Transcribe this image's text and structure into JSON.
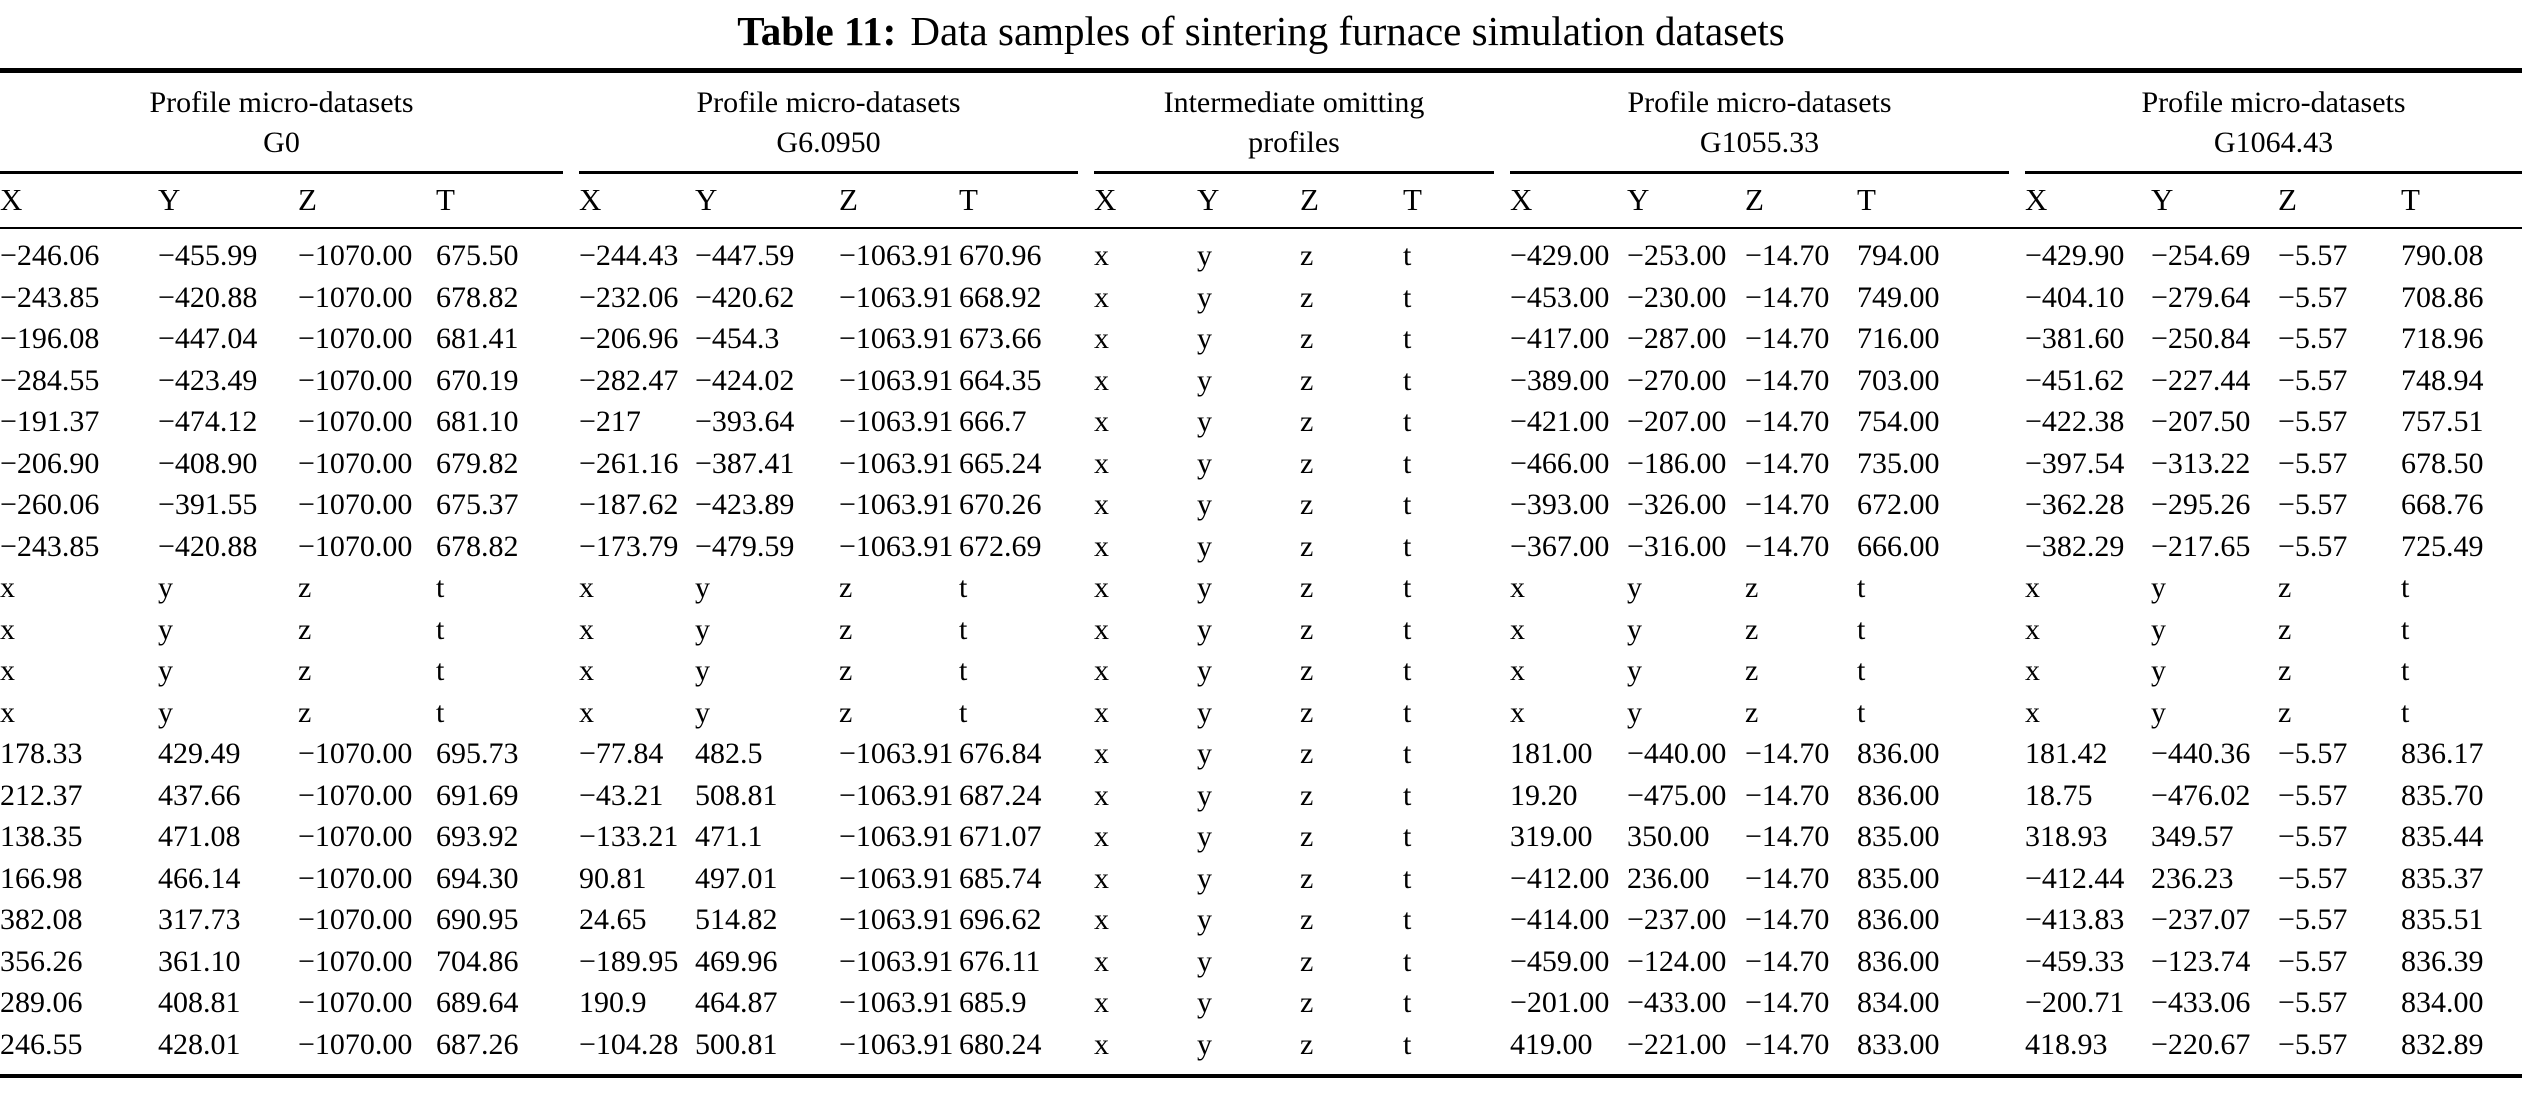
{
  "colors": {
    "text": "#000000",
    "background": "#ffffff",
    "rule": "#000000"
  },
  "title": {
    "label": "Table 11:",
    "text": "Data samples of sintering furnace simulation datasets"
  },
  "table": {
    "groups": [
      {
        "name": "Profile micro-datasets",
        "subtitle": "G0",
        "columns": [
          "X",
          "Y",
          "Z",
          "T"
        ]
      },
      {
        "name": "Profile micro-datasets",
        "subtitle": "G6.0950",
        "columns": [
          "X",
          "Y",
          "Z",
          "T"
        ]
      },
      {
        "name": "Intermediate omitting",
        "subtitle": "profiles",
        "columns": [
          "X",
          "Y",
          "Z",
          "T"
        ]
      },
      {
        "name": "Profile micro-datasets",
        "subtitle": "G1055.33",
        "columns": [
          "X",
          "Y",
          "Z",
          "T"
        ]
      },
      {
        "name": "Profile micro-datasets",
        "subtitle": "G1064.43",
        "columns": [
          "X",
          "Y",
          "Z",
          "T"
        ]
      }
    ],
    "rows": [
      [
        [
          "−246.06",
          "−455.99",
          "−1070.00",
          "675.50"
        ],
        [
          "−244.43",
          "−447.59",
          "−1063.91",
          "670.96"
        ],
        [
          "x",
          "y",
          "z",
          "t"
        ],
        [
          "−429.00",
          "−253.00",
          "−14.70",
          "794.00"
        ],
        [
          "−429.90",
          "−254.69",
          "−5.57",
          "790.08"
        ]
      ],
      [
        [
          "−243.85",
          "−420.88",
          "−1070.00",
          "678.82"
        ],
        [
          "−232.06",
          "−420.62",
          "−1063.91",
          "668.92"
        ],
        [
          "x",
          "y",
          "z",
          "t"
        ],
        [
          "−453.00",
          "−230.00",
          "−14.70",
          "749.00"
        ],
        [
          "−404.10",
          "−279.64",
          "−5.57",
          "708.86"
        ]
      ],
      [
        [
          "−196.08",
          "−447.04",
          "−1070.00",
          "681.41"
        ],
        [
          "−206.96",
          "−454.3",
          "−1063.91",
          "673.66"
        ],
        [
          "x",
          "y",
          "z",
          "t"
        ],
        [
          "−417.00",
          "−287.00",
          "−14.70",
          "716.00"
        ],
        [
          "−381.60",
          "−250.84",
          "−5.57",
          "718.96"
        ]
      ],
      [
        [
          "−284.55",
          "−423.49",
          "−1070.00",
          "670.19"
        ],
        [
          "−282.47",
          "−424.02",
          "−1063.91",
          "664.35"
        ],
        [
          "x",
          "y",
          "z",
          "t"
        ],
        [
          "−389.00",
          "−270.00",
          "−14.70",
          "703.00"
        ],
        [
          "−451.62",
          "−227.44",
          "−5.57",
          "748.94"
        ]
      ],
      [
        [
          "−191.37",
          "−474.12",
          "−1070.00",
          "681.10"
        ],
        [
          "−217",
          "−393.64",
          "−1063.91",
          "666.7"
        ],
        [
          "x",
          "y",
          "z",
          "t"
        ],
        [
          "−421.00",
          "−207.00",
          "−14.70",
          "754.00"
        ],
        [
          "−422.38",
          "−207.50",
          "−5.57",
          "757.51"
        ]
      ],
      [
        [
          "−206.90",
          "−408.90",
          "−1070.00",
          "679.82"
        ],
        [
          "−261.16",
          "−387.41",
          "−1063.91",
          "665.24"
        ],
        [
          "x",
          "y",
          "z",
          "t"
        ],
        [
          "−466.00",
          "−186.00",
          "−14.70",
          "735.00"
        ],
        [
          "−397.54",
          "−313.22",
          "−5.57",
          "678.50"
        ]
      ],
      [
        [
          "−260.06",
          "−391.55",
          "−1070.00",
          "675.37"
        ],
        [
          "−187.62",
          "−423.89",
          "−1063.91",
          "670.26"
        ],
        [
          "x",
          "y",
          "z",
          "t"
        ],
        [
          "−393.00",
          "−326.00",
          "−14.70",
          "672.00"
        ],
        [
          "−362.28",
          "−295.26",
          "−5.57",
          "668.76"
        ]
      ],
      [
        [
          "−243.85",
          "−420.88",
          "−1070.00",
          "678.82"
        ],
        [
          "−173.79",
          "−479.59",
          "−1063.91",
          "672.69"
        ],
        [
          "x",
          "y",
          "z",
          "t"
        ],
        [
          "−367.00",
          "−316.00",
          "−14.70",
          "666.00"
        ],
        [
          "−382.29",
          "−217.65",
          "−5.57",
          "725.49"
        ]
      ],
      [
        [
          "x",
          "y",
          "z",
          "t"
        ],
        [
          "x",
          "y",
          "z",
          "t"
        ],
        [
          "x",
          "y",
          "z",
          "t"
        ],
        [
          "x",
          "y",
          "z",
          "t"
        ],
        [
          "x",
          "y",
          "z",
          "t"
        ]
      ],
      [
        [
          "x",
          "y",
          "z",
          "t"
        ],
        [
          "x",
          "y",
          "z",
          "t"
        ],
        [
          "x",
          "y",
          "z",
          "t"
        ],
        [
          "x",
          "y",
          "z",
          "t"
        ],
        [
          "x",
          "y",
          "z",
          "t"
        ]
      ],
      [
        [
          "x",
          "y",
          "z",
          "t"
        ],
        [
          "x",
          "y",
          "z",
          "t"
        ],
        [
          "x",
          "y",
          "z",
          "t"
        ],
        [
          "x",
          "y",
          "z",
          "t"
        ],
        [
          "x",
          "y",
          "z",
          "t"
        ]
      ],
      [
        [
          "x",
          "y",
          "z",
          "t"
        ],
        [
          "x",
          "y",
          "z",
          "t"
        ],
        [
          "x",
          "y",
          "z",
          "t"
        ],
        [
          "x",
          "y",
          "z",
          "t"
        ],
        [
          "x",
          "y",
          "z",
          "t"
        ]
      ],
      [
        [
          "178.33",
          "429.49",
          "−1070.00",
          "695.73"
        ],
        [
          "−77.84",
          "482.5",
          "−1063.91",
          "676.84"
        ],
        [
          "x",
          "y",
          "z",
          "t"
        ],
        [
          "181.00",
          "−440.00",
          "−14.70",
          "836.00"
        ],
        [
          "181.42",
          "−440.36",
          "−5.57",
          "836.17"
        ]
      ],
      [
        [
          "212.37",
          "437.66",
          "−1070.00",
          "691.69"
        ],
        [
          "−43.21",
          "508.81",
          "−1063.91",
          "687.24"
        ],
        [
          "x",
          "y",
          "z",
          "t"
        ],
        [
          "19.20",
          "−475.00",
          "−14.70",
          "836.00"
        ],
        [
          "18.75",
          "−476.02",
          "−5.57",
          "835.70"
        ]
      ],
      [
        [
          "138.35",
          "471.08",
          "−1070.00",
          "693.92"
        ],
        [
          "−133.21",
          "471.1",
          "−1063.91",
          "671.07"
        ],
        [
          "x",
          "y",
          "z",
          "t"
        ],
        [
          "319.00",
          "350.00",
          "−14.70",
          "835.00"
        ],
        [
          "318.93",
          "349.57",
          "−5.57",
          "835.44"
        ]
      ],
      [
        [
          "166.98",
          "466.14",
          "−1070.00",
          "694.30"
        ],
        [
          "90.81",
          "497.01",
          "−1063.91",
          "685.74"
        ],
        [
          "x",
          "y",
          "z",
          "t"
        ],
        [
          "−412.00",
          "236.00",
          "−14.70",
          "835.00"
        ],
        [
          "−412.44",
          "236.23",
          "−5.57",
          "835.37"
        ]
      ],
      [
        [
          "382.08",
          "317.73",
          "−1070.00",
          "690.95"
        ],
        [
          "24.65",
          "514.82",
          "−1063.91",
          "696.62"
        ],
        [
          "x",
          "y",
          "z",
          "t"
        ],
        [
          "−414.00",
          "−237.00",
          "−14.70",
          "836.00"
        ],
        [
          "−413.83",
          "−237.07",
          "−5.57",
          "835.51"
        ]
      ],
      [
        [
          "356.26",
          "361.10",
          "−1070.00",
          "704.86"
        ],
        [
          "−189.95",
          "469.96",
          "−1063.91",
          "676.11"
        ],
        [
          "x",
          "y",
          "z",
          "t"
        ],
        [
          "−459.00",
          "−124.00",
          "−14.70",
          "836.00"
        ],
        [
          "−459.33",
          "−123.74",
          "−5.57",
          "836.39"
        ]
      ],
      [
        [
          "289.06",
          "408.81",
          "−1070.00",
          "689.64"
        ],
        [
          "190.9",
          "464.87",
          "−1063.91",
          "685.9"
        ],
        [
          "x",
          "y",
          "z",
          "t"
        ],
        [
          "−201.00",
          "−433.00",
          "−14.70",
          "834.00"
        ],
        [
          "−200.71",
          "−433.06",
          "−5.57",
          "834.00"
        ]
      ],
      [
        [
          "246.55",
          "428.01",
          "−1070.00",
          "687.26"
        ],
        [
          "−104.28",
          "500.81",
          "−1063.91",
          "680.24"
        ],
        [
          "x",
          "y",
          "z",
          "t"
        ],
        [
          "419.00",
          "−221.00",
          "−14.70",
          "833.00"
        ],
        [
          "418.93",
          "−220.67",
          "−5.57",
          "832.89"
        ]
      ]
    ]
  }
}
